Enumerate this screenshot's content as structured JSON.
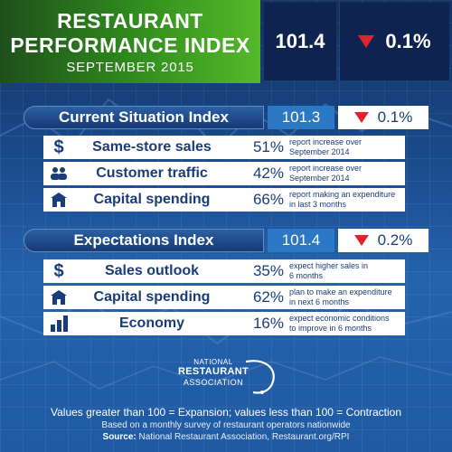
{
  "header": {
    "title_line1": "RESTAURANT",
    "title_line2": "PERFORMANCE INDEX",
    "date": "SEPTEMBER 2015",
    "value": "101.4",
    "change": "0.1%",
    "change_direction": "down"
  },
  "sections": [
    {
      "name": "Current Situation Index",
      "value": "101.3",
      "change": "0.1%",
      "change_direction": "down",
      "rows": [
        {
          "icon": "dollar-icon",
          "label": "Same-store sales",
          "pct": "51%",
          "desc_line1": "report increase over",
          "desc_line2": "September 2014"
        },
        {
          "icon": "people-icon",
          "label": "Customer traffic",
          "pct": "42%",
          "desc_line1": "report increase over",
          "desc_line2": "September 2014"
        },
        {
          "icon": "building-icon",
          "label": "Capital spending",
          "pct": "66%",
          "desc_line1": "report making an expenditure",
          "desc_line2": "in last 3 months"
        }
      ]
    },
    {
      "name": "Expectations Index",
      "value": "101.4",
      "change": "0.2%",
      "change_direction": "down",
      "rows": [
        {
          "icon": "dollar-icon",
          "label": "Sales outlook",
          "pct": "35%",
          "desc_line1": "expect higher sales in",
          "desc_line2": "6 months"
        },
        {
          "icon": "building-icon",
          "label": "Capital spending",
          "pct": "62%",
          "desc_line1": "plan to make an expenditure",
          "desc_line2": "in next 6 months"
        },
        {
          "icon": "bar-chart-icon",
          "label": "Economy",
          "pct": "16%",
          "desc_line1": "expect economic conditions",
          "desc_line2": "to improve in 6 months"
        }
      ]
    }
  ],
  "logo": {
    "line1": "NATIONAL",
    "line2": "RESTAURANT",
    "line3": "ASSOCIATION"
  },
  "footer": {
    "main": "Values greater than 100 = Expansion; values less than 100 = Contraction",
    "sub": "Based on a monthly survey of restaurant operators nationwide",
    "source_label": "Source:",
    "source_text": " National Restaurant Association, Restaurant.org/RPI"
  },
  "colors": {
    "green": "#2f8a1d",
    "navy": "#0f2350",
    "down_red": "#e0242e",
    "text_blue": "#1a3c78"
  }
}
